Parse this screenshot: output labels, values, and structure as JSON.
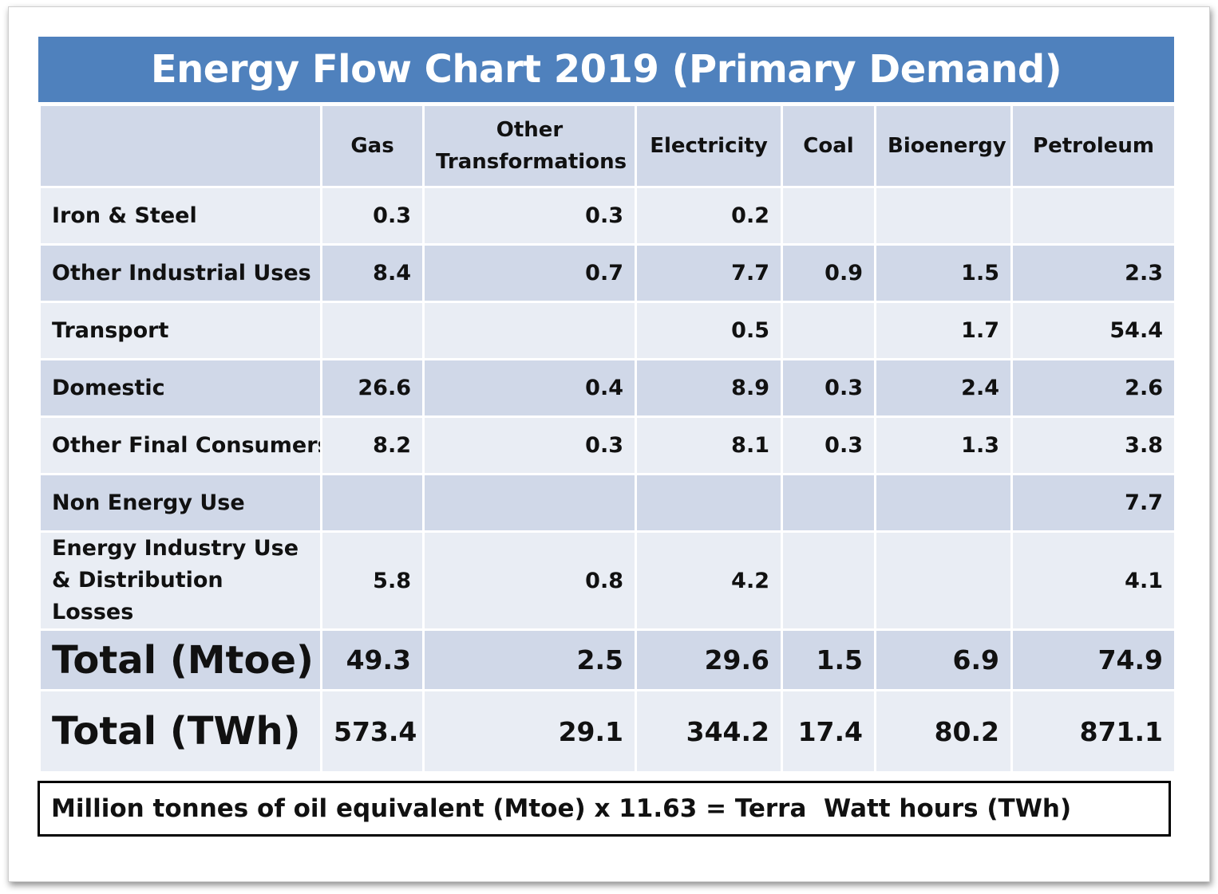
{
  "chart_data": {
    "type": "table",
    "title": "Energy Flow Chart 2019 (Primary Demand)",
    "columns": [
      "",
      "Gas",
      "Other Transformations",
      "Electricity",
      "Coal",
      "Bioenergy",
      "Petroleum"
    ],
    "rows": [
      {
        "label": "Iron & Steel",
        "values": [
          "0.3",
          "0.3",
          "0.2",
          "",
          "",
          ""
        ]
      },
      {
        "label": "Other Industrial Uses",
        "values": [
          "8.4",
          "0.7",
          "7.7",
          "0.9",
          "1.5",
          "2.3"
        ]
      },
      {
        "label": "Transport",
        "values": [
          "",
          "",
          "0.5",
          "",
          "1.7",
          "54.4"
        ]
      },
      {
        "label": "Domestic",
        "values": [
          "26.6",
          "0.4",
          "8.9",
          "0.3",
          "2.4",
          "2.6"
        ]
      },
      {
        "label": "Other Final Consumers",
        "values": [
          "8.2",
          "0.3",
          "8.1",
          "0.3",
          "1.3",
          "3.8"
        ]
      },
      {
        "label": "Non Energy Use",
        "values": [
          "",
          "",
          "",
          "",
          "",
          "7.7"
        ]
      },
      {
        "label": "Energy Industry Use & Distribution Losses",
        "values": [
          "5.8",
          "0.8",
          "4.2",
          "",
          "",
          "4.1"
        ]
      },
      {
        "label": "Total (Mtoe)",
        "values": [
          "49.3",
          "2.5",
          "29.6",
          "1.5",
          "6.9",
          "74.9"
        ]
      },
      {
        "label": "Total (TWh)",
        "values": [
          "573.4",
          "29.1",
          "344.2",
          "17.4",
          "80.2",
          "871.1"
        ]
      }
    ],
    "footnote": "Million tonnes of oil equivalent (Mtoe) x 11.63 = Terra  Watt hours (TWh)"
  },
  "colors": {
    "title_background": "#4f81bd",
    "row_dark": "#d0d8e8",
    "row_light": "#e9edf4"
  }
}
